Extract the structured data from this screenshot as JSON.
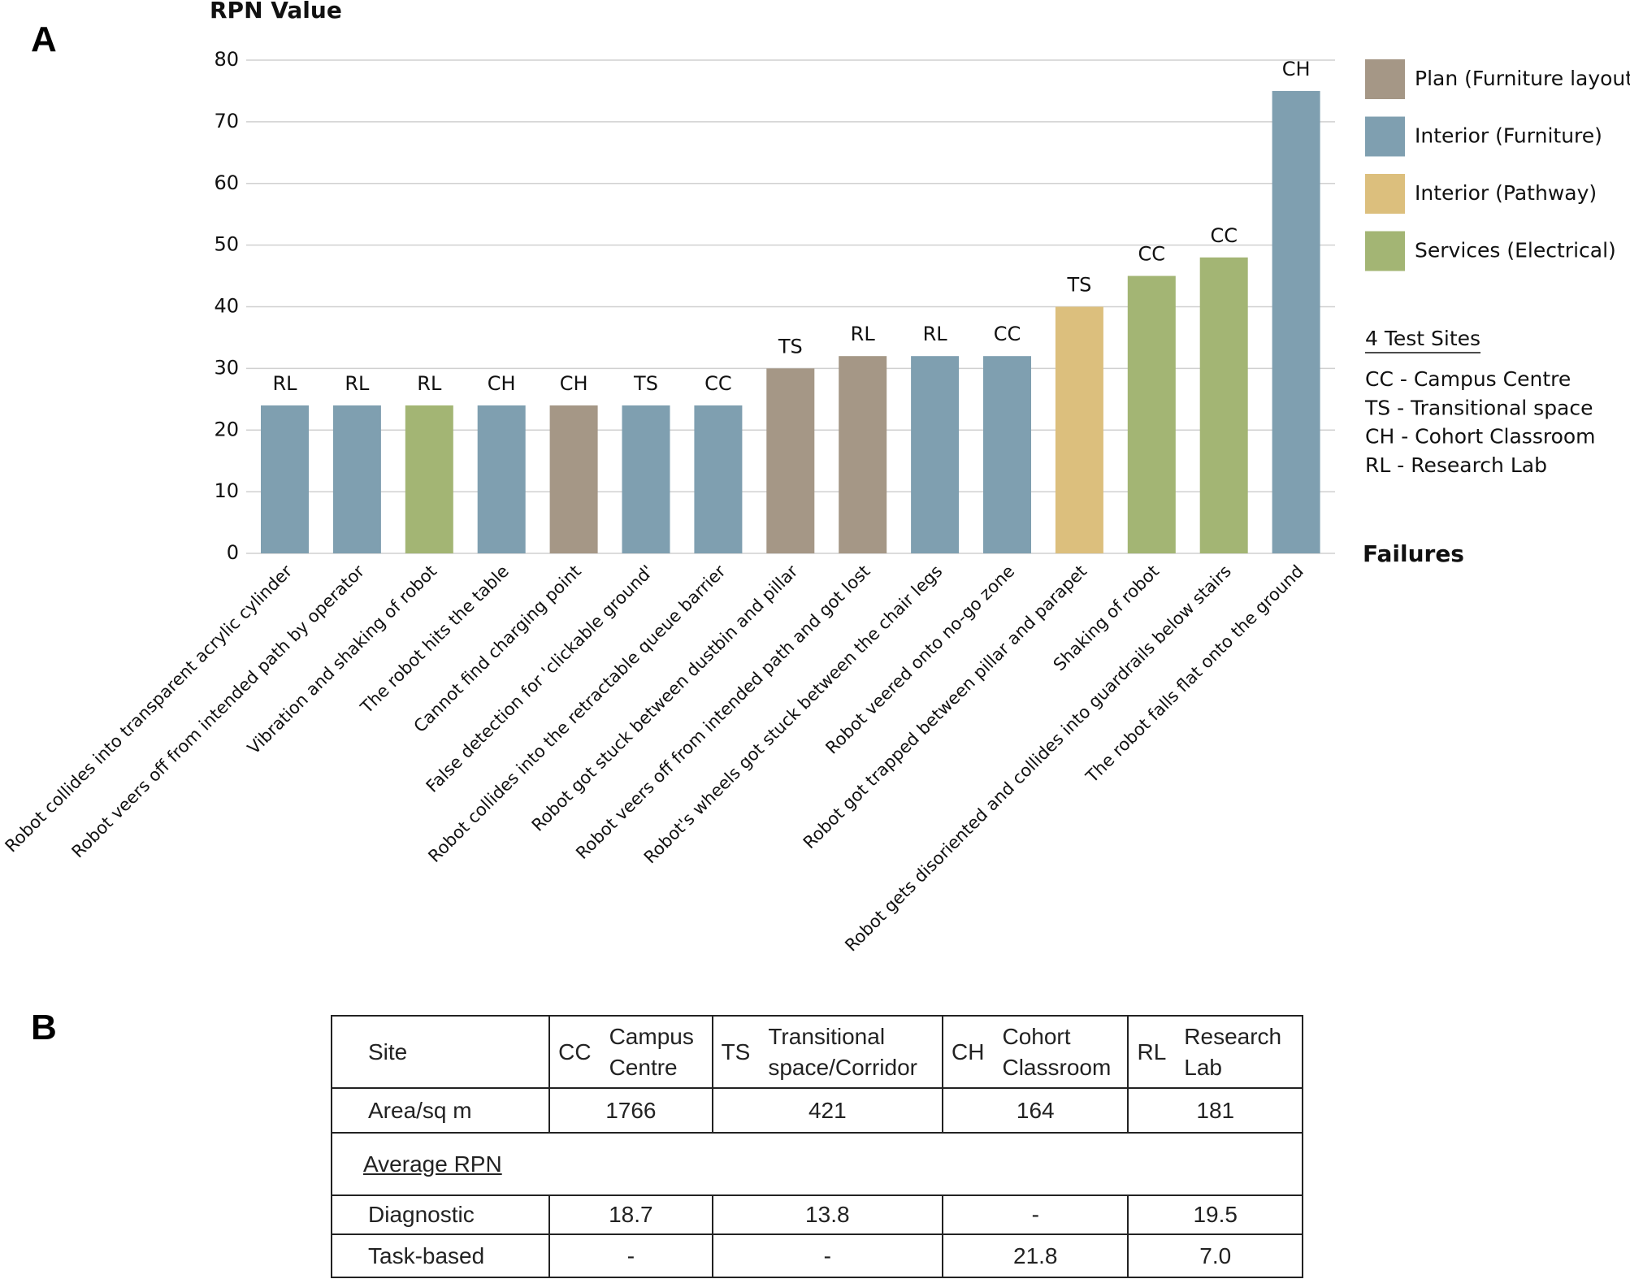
{
  "panels": {
    "a": "A",
    "b": "B"
  },
  "chart_data": {
    "type": "bar",
    "y_label": "RPN Value",
    "x_label": "Failures",
    "categories": [
      "Robot collides into transparent acrylic cylinder",
      "Robot veers off from intended path by operator",
      "Vibration and shaking of robot",
      "The robot hits the table",
      "Cannot find charging point",
      "False detection for 'clickable ground'",
      "Robot collides into the retractable queue barrier",
      "Robot got stuck between dustbin and pillar",
      "Robot veers off from intended path and got lost",
      "Robot's wheels got stuck between the chair legs",
      "Robot veered onto no-go zone",
      "Robot got trapped between pillar and parapet",
      "Shaking of robot",
      "Robot gets disoriented and collides into guardrails below stairs",
      "The robot falls flat onto the ground"
    ],
    "values": [
      24,
      24,
      24,
      24,
      24,
      24,
      24,
      30,
      32,
      32,
      32,
      40,
      45,
      48,
      75
    ],
    "site_labels": [
      "RL",
      "RL",
      "RL",
      "CH",
      "CH",
      "TS",
      "CC",
      "TS",
      "RL",
      "RL",
      "CC",
      "TS",
      "CC",
      "CC",
      "CH"
    ],
    "colors": [
      "#7f9fb0",
      "#7f9fb0",
      "#a3b574",
      "#7f9fb0",
      "#a59786",
      "#7f9fb0",
      "#7f9fb0",
      "#a59786",
      "#a59786",
      "#7f9fb0",
      "#7f9fb0",
      "#dcbf7d",
      "#a3b574",
      "#a3b574",
      "#7f9fb0"
    ],
    "legend": [
      {
        "name": "Plan (Furniture layout)",
        "color": "#a59786"
      },
      {
        "name": "Interior (Furniture)",
        "color": "#7f9fb0"
      },
      {
        "name": "Interior (Pathway)",
        "color": "#dcbf7d"
      },
      {
        "name": "Services (Electrical)",
        "color": "#a3b574"
      }
    ],
    "sites_note": {
      "title": "4 Test Sites",
      "items": [
        "CC - Campus Centre",
        "TS - Transitional space",
        "CH - Cohort Classroom",
        "RL - Research Lab"
      ]
    },
    "ylim": [
      0,
      80
    ],
    "yticks": [
      0,
      10,
      20,
      30,
      40,
      50,
      60,
      70,
      80
    ],
    "grid": true
  },
  "table": {
    "site_label": "Site",
    "sites": [
      {
        "code": "CC",
        "name": "Campus Centre"
      },
      {
        "code": "TS",
        "name": "Transitional space/Corridor"
      },
      {
        "code": "CH",
        "name": "Cohort Classroom"
      },
      {
        "code": "RL",
        "name": "Research Lab"
      }
    ],
    "area_row": [
      "Area/sq m",
      "1766",
      "421",
      "164",
      "181"
    ],
    "section": "Average RPN",
    "rpn_rows": [
      [
        "Diagnostic",
        "18.7",
        "13.8",
        "-",
        "19.5"
      ],
      [
        "Task-based",
        "-",
        "-",
        "21.8",
        "7.0"
      ]
    ]
  }
}
